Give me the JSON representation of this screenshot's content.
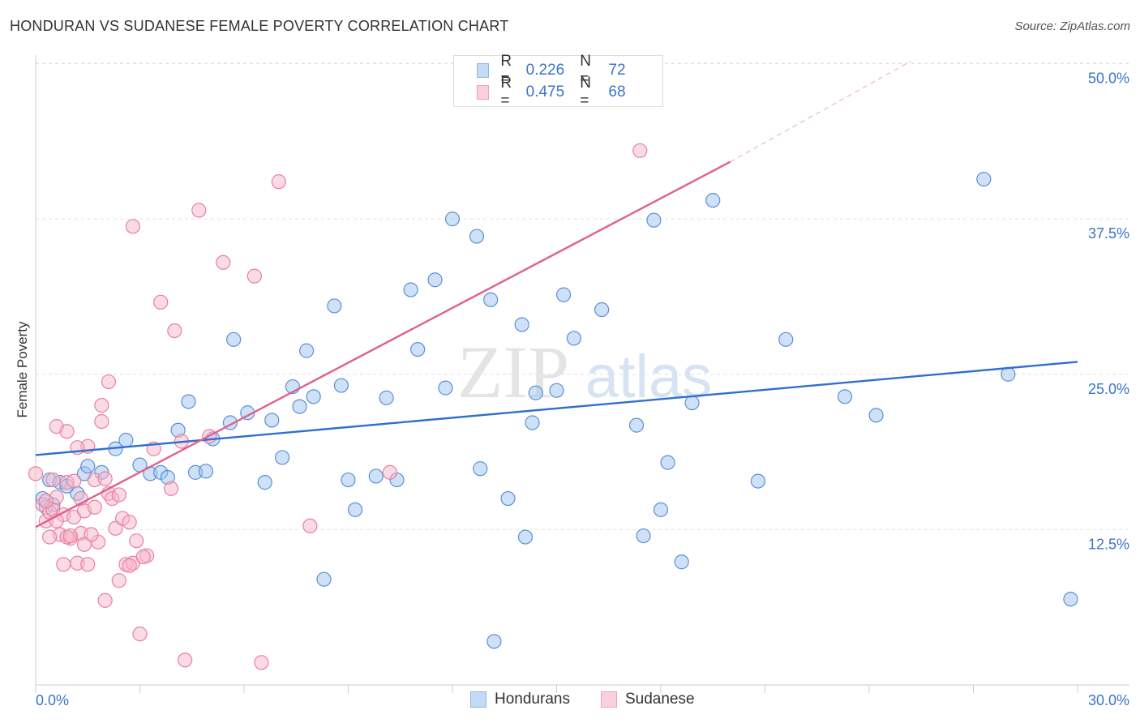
{
  "header": {
    "title": "HONDURAN VS SUDANESE FEMALE POVERTY CORRELATION CHART",
    "source": "Source: ZipAtlas.com"
  },
  "watermark": {
    "zip": "ZIP",
    "atlas": "atlas"
  },
  "legend": {
    "r_label": "R =",
    "n_label": "N =",
    "rows": [
      {
        "name": "Hondurans",
        "r": "0.226",
        "n": "72",
        "color": "#9ec3ee",
        "line": "#2f6fcf"
      },
      {
        "name": "Sudanese",
        "r": "0.475",
        "n": "68",
        "color": "#f6b8cb",
        "line": "#e0608e"
      }
    ]
  },
  "axes": {
    "ylabel": "Female Poverty",
    "x_min_label": "0.0%",
    "x_max_label": "30.0%",
    "y_tick_labels": [
      "12.5%",
      "25.0%",
      "37.5%",
      "50.0%"
    ]
  },
  "chart_data": {
    "type": "scatter",
    "title": "HONDURAN VS SUDANESE FEMALE POVERTY CORRELATION CHART",
    "xlabel": "",
    "ylabel": "Female Poverty",
    "xlim": [
      0,
      30
    ],
    "ylim": [
      0,
      51
    ],
    "y_ticks": [
      12.5,
      25.0,
      37.5,
      50.0
    ],
    "grid": true,
    "series": [
      {
        "name": "Hondurans",
        "color": "#9ec3ee",
        "stroke": "#5b90d8",
        "trend": {
          "x": [
            0,
            30
          ],
          "y": [
            18.5,
            26.0
          ],
          "color": "#2f6fcf"
        },
        "points": [
          [
            0.2,
            15.0
          ],
          [
            0.3,
            14.3
          ],
          [
            0.4,
            16.5
          ],
          [
            0.5,
            14.5
          ],
          [
            0.7,
            16.3
          ],
          [
            1.2,
            15.4
          ],
          [
            1.4,
            17.0
          ],
          [
            1.5,
            17.6
          ],
          [
            2.3,
            19.0
          ],
          [
            2.6,
            19.7
          ],
          [
            3.0,
            17.7
          ],
          [
            3.3,
            17.0
          ],
          [
            3.6,
            17.1
          ],
          [
            3.8,
            16.7
          ],
          [
            4.1,
            20.5
          ],
          [
            4.4,
            22.8
          ],
          [
            4.6,
            17.1
          ],
          [
            4.9,
            17.2
          ],
          [
            5.1,
            19.8
          ],
          [
            5.6,
            21.1
          ],
          [
            5.7,
            27.8
          ],
          [
            6.1,
            21.9
          ],
          [
            6.6,
            16.3
          ],
          [
            6.8,
            21.3
          ],
          [
            7.1,
            18.3
          ],
          [
            7.4,
            24.0
          ],
          [
            7.6,
            22.4
          ],
          [
            7.8,
            26.9
          ],
          [
            8.0,
            23.2
          ],
          [
            8.3,
            8.5
          ],
          [
            8.6,
            30.5
          ],
          [
            8.8,
            24.1
          ],
          [
            9.0,
            16.5
          ],
          [
            9.2,
            14.1
          ],
          [
            9.8,
            16.8
          ],
          [
            10.1,
            23.1
          ],
          [
            10.4,
            16.5
          ],
          [
            10.8,
            31.8
          ],
          [
            11.0,
            27.0
          ],
          [
            11.5,
            32.6
          ],
          [
            11.8,
            23.9
          ],
          [
            12.0,
            37.5
          ],
          [
            12.7,
            36.1
          ],
          [
            12.8,
            17.4
          ],
          [
            13.1,
            31.0
          ],
          [
            13.2,
            3.5
          ],
          [
            13.6,
            15.0
          ],
          [
            14.0,
            29.0
          ],
          [
            14.1,
            11.9
          ],
          [
            14.3,
            21.1
          ],
          [
            14.4,
            23.5
          ],
          [
            15.0,
            23.7
          ],
          [
            15.2,
            31.4
          ],
          [
            15.5,
            27.9
          ],
          [
            16.3,
            30.2
          ],
          [
            17.3,
            20.9
          ],
          [
            17.5,
            12.0
          ],
          [
            17.8,
            37.4
          ],
          [
            18.0,
            14.1
          ],
          [
            18.2,
            17.9
          ],
          [
            18.6,
            9.9
          ],
          [
            18.9,
            22.7
          ],
          [
            19.5,
            39.0
          ],
          [
            20.8,
            16.4
          ],
          [
            21.6,
            27.8
          ],
          [
            23.3,
            23.2
          ],
          [
            24.2,
            21.7
          ],
          [
            27.3,
            40.7
          ],
          [
            28.0,
            25.0
          ],
          [
            29.8,
            6.9
          ],
          [
            0.9,
            16.0
          ],
          [
            1.9,
            17.1
          ]
        ]
      },
      {
        "name": "Sudanese",
        "color": "#f6b8cb",
        "stroke": "#e9809f",
        "trend": {
          "x": [
            0,
            20
          ],
          "y": [
            12.7,
            42.1
          ],
          "color": "#e0608e",
          "dashed_ext": {
            "x": [
              20,
              25.2
            ],
            "y": [
              42.1,
              50.2
            ]
          }
        },
        "points": [
          [
            0.0,
            17.0
          ],
          [
            0.2,
            14.5
          ],
          [
            0.3,
            13.2
          ],
          [
            0.4,
            13.9
          ],
          [
            0.5,
            14.1
          ],
          [
            0.5,
            16.5
          ],
          [
            0.6,
            20.8
          ],
          [
            0.7,
            12.1
          ],
          [
            0.8,
            13.7
          ],
          [
            0.8,
            9.7
          ],
          [
            0.9,
            16.3
          ],
          [
            0.9,
            20.4
          ],
          [
            1.0,
            11.8
          ],
          [
            1.1,
            13.5
          ],
          [
            1.2,
            9.8
          ],
          [
            1.3,
            12.2
          ],
          [
            1.3,
            15.0
          ],
          [
            1.4,
            14.0
          ],
          [
            1.5,
            9.7
          ],
          [
            1.5,
            19.2
          ],
          [
            1.7,
            16.5
          ],
          [
            1.7,
            14.3
          ],
          [
            1.8,
            11.5
          ],
          [
            1.9,
            22.5
          ],
          [
            1.9,
            21.2
          ],
          [
            2.0,
            6.8
          ],
          [
            2.1,
            24.4
          ],
          [
            2.1,
            15.4
          ],
          [
            2.2,
            15.0
          ],
          [
            2.3,
            12.6
          ],
          [
            2.4,
            8.4
          ],
          [
            2.5,
            13.4
          ],
          [
            2.6,
            9.7
          ],
          [
            2.7,
            13.1
          ],
          [
            2.8,
            36.9
          ],
          [
            2.8,
            9.8
          ],
          [
            2.9,
            11.6
          ],
          [
            3.0,
            4.1
          ],
          [
            3.2,
            10.4
          ],
          [
            3.4,
            19.0
          ],
          [
            3.6,
            30.8
          ],
          [
            3.9,
            15.8
          ],
          [
            4.0,
            28.5
          ],
          [
            4.2,
            19.6
          ],
          [
            4.3,
            2.0
          ],
          [
            4.7,
            38.2
          ],
          [
            5.0,
            20.0
          ],
          [
            5.4,
            34.0
          ],
          [
            6.3,
            32.9
          ],
          [
            6.5,
            1.8
          ],
          [
            7.0,
            40.5
          ],
          [
            7.9,
            12.8
          ],
          [
            10.2,
            17.1
          ],
          [
            17.4,
            43.0
          ],
          [
            0.4,
            11.9
          ],
          [
            0.6,
            15.1
          ],
          [
            0.9,
            11.9
          ],
          [
            1.1,
            16.4
          ],
          [
            1.6,
            12.1
          ],
          [
            2.0,
            16.6
          ],
          [
            2.4,
            15.3
          ],
          [
            3.1,
            10.3
          ],
          [
            0.3,
            14.8
          ],
          [
            1.4,
            11.3
          ],
          [
            2.7,
            9.6
          ],
          [
            1.2,
            19.1
          ],
          [
            1.0,
            12.0
          ],
          [
            0.6,
            13.2
          ]
        ]
      }
    ]
  }
}
